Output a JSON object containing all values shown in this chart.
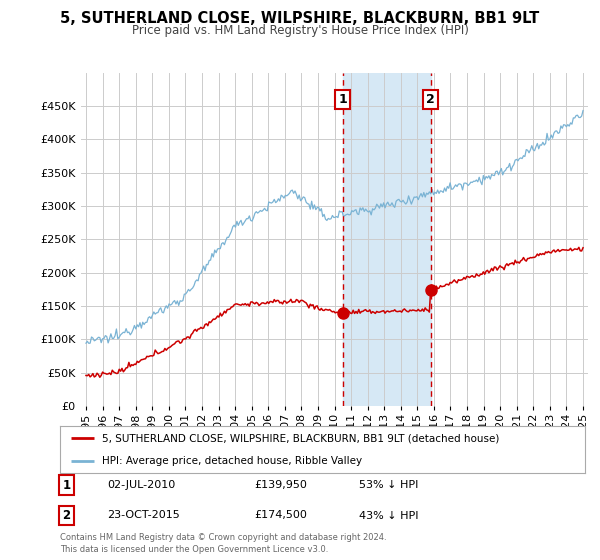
{
  "title": "5, SUTHERLAND CLOSE, WILPSHIRE, BLACKBURN, BB1 9LT",
  "subtitle": "Price paid vs. HM Land Registry's House Price Index (HPI)",
  "red_label": "5, SUTHERLAND CLOSE, WILPSHIRE, BLACKBURN, BB1 9LT (detached house)",
  "blue_label": "HPI: Average price, detached house, Ribble Valley",
  "footer": "Contains HM Land Registry data © Crown copyright and database right 2024.\nThis data is licensed under the Open Government Licence v3.0.",
  "point1_date": "02-JUL-2010",
  "point1_price": "£139,950",
  "point1_hpi": "53% ↓ HPI",
  "point1_year": 2010.5,
  "point1_val": 139950,
  "point2_date": "23-OCT-2015",
  "point2_price": "£174,500",
  "point2_hpi": "43% ↓ HPI",
  "point2_year": 2015.8,
  "point2_val": 174500,
  "red_color": "#cc0000",
  "blue_color": "#7ab3d4",
  "highlight_color": "#d6e8f5",
  "background_color": "#ffffff",
  "grid_color": "#cccccc",
  "ylim": [
    0,
    500000
  ],
  "yticks": [
    0,
    50000,
    100000,
    150000,
    200000,
    250000,
    300000,
    350000,
    400000,
    450000
  ],
  "xlim_start": 1994.7,
  "xlim_end": 2025.3
}
